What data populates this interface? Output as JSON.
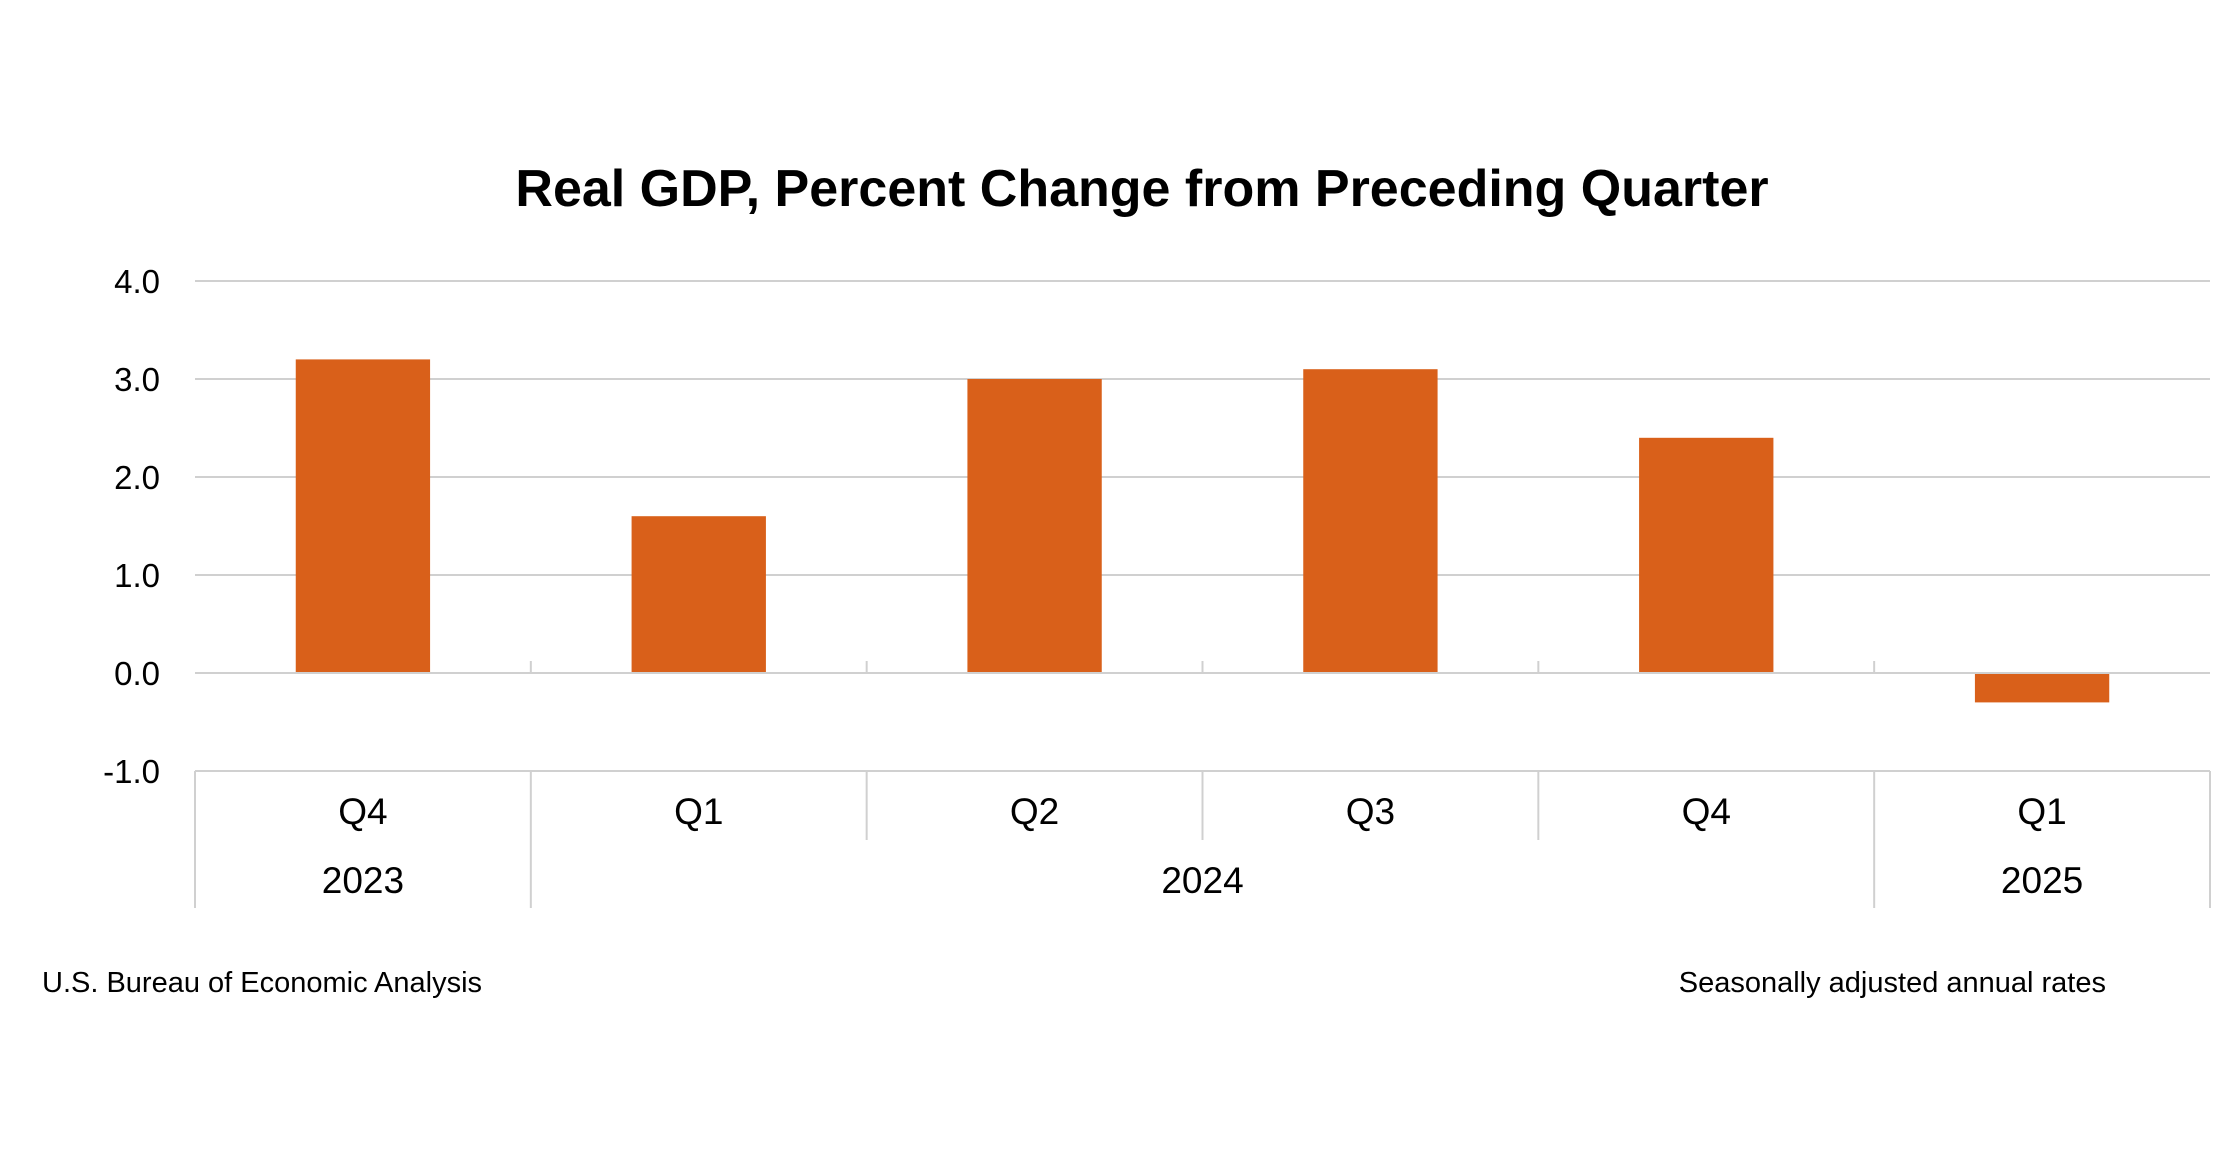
{
  "chart_data": {
    "type": "bar",
    "title": "Real GDP, Percent Change from Preceding Quarter",
    "categories": [
      "Q4",
      "Q1",
      "Q2",
      "Q3",
      "Q4",
      "Q1"
    ],
    "year_groups": [
      {
        "label": "2023",
        "count": 1
      },
      {
        "label": "2024",
        "count": 4
      },
      {
        "label": "2025",
        "count": 1
      }
    ],
    "values": [
      3.2,
      1.6,
      3.0,
      3.1,
      2.4,
      -0.3
    ],
    "ylim": [
      -1.0,
      4.0
    ],
    "yticks": [
      "-1.0",
      "0.0",
      "1.0",
      "2.0",
      "3.0",
      "4.0"
    ],
    "grid": true,
    "bar_color": "#D9601A",
    "source_note": "U.S. Bureau of Economic Analysis",
    "rate_note": "Seasonally adjusted annual rates"
  }
}
